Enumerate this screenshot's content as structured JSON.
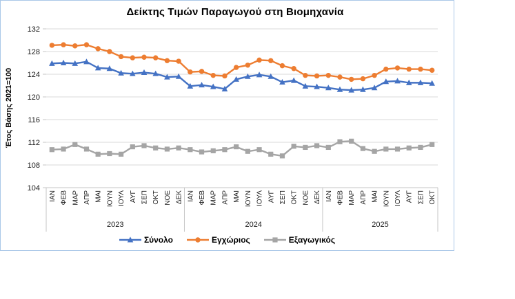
{
  "chart": {
    "border_color": "#a9c7e8",
    "background": "#ffffff",
    "gridline_color": "#d9d9d9",
    "axis_color": "#c6c6c6",
    "text_color": "#1a1a1a"
  },
  "chart_data": {
    "type": "line",
    "title": "Δείκτης Τιμών Παραγωγού στη Βιομηχανία",
    "xlabel": "",
    "ylabel": "Έτος Βάσης 2021=100",
    "ylim": [
      104,
      132
    ],
    "yticks": [
      104,
      108,
      112,
      116,
      120,
      124,
      128,
      132
    ],
    "grid": true,
    "legend_position": "bottom",
    "x_groups": [
      {
        "year": "2023",
        "months": [
          "ΙΑΝ",
          "ΦΕΒ",
          "ΜΑΡ",
          "ΑΠΡ",
          "ΜΑΙ",
          "ΙΟΥΝ",
          "ΙΟΥΛ",
          "ΑΥΓ",
          "ΣΕΠ",
          "ΟΚΤ",
          "ΝΟΕ",
          "ΔΕΚ"
        ]
      },
      {
        "year": "2024",
        "months": [
          "ΙΑΝ",
          "ΦΕΒ",
          "ΜΑΡ",
          "ΑΠΡ",
          "ΜΑΙ",
          "ΙΟΥΝ",
          "ΙΟΥΛ",
          "ΑΥΓ",
          "ΣΕΠ",
          "ΟΚΤ",
          "ΝΟΕ",
          "ΔΕΚ"
        ]
      },
      {
        "year": "2025",
        "months": [
          "ΙΑΝ",
          "ΦΕΒ",
          "ΜΑΡ",
          "ΑΠΡ",
          "ΜΑΙ",
          "ΙΟΥΝ",
          "ΙΟΥΛ",
          "ΑΥΓ",
          "ΣΕΠ",
          "ΟΚΤ"
        ]
      }
    ],
    "series": [
      {
        "key": "synolo",
        "name": "Σύνολο",
        "color": "#4472c4",
        "marker": "triangle",
        "values": [
          125.9,
          126.0,
          125.9,
          126.2,
          125.1,
          125.0,
          124.2,
          124.1,
          124.3,
          124.1,
          123.5,
          123.6,
          121.9,
          122.1,
          121.8,
          121.4,
          123.1,
          123.6,
          123.9,
          123.6,
          122.6,
          122.9,
          121.9,
          121.8,
          121.6,
          121.3,
          121.2,
          121.3,
          121.6,
          122.7,
          122.8,
          122.5,
          122.5,
          122.4
        ]
      },
      {
        "key": "egchorios",
        "name": "Εγχώριος",
        "color": "#ed7d31",
        "marker": "circle",
        "values": [
          129.1,
          129.2,
          129.0,
          129.2,
          128.5,
          128.0,
          127.1,
          126.9,
          127.0,
          126.9,
          126.4,
          126.3,
          124.4,
          124.5,
          123.8,
          123.7,
          125.2,
          125.6,
          126.5,
          126.4,
          125.5,
          125.0,
          123.8,
          123.7,
          123.8,
          123.5,
          123.1,
          123.2,
          123.8,
          124.9,
          125.1,
          124.9,
          124.9,
          124.7
        ]
      },
      {
        "key": "exagogikos",
        "name": "Εξαγωγικός",
        "color": "#a5a5a5",
        "marker": "square",
        "values": [
          110.7,
          110.8,
          111.6,
          110.8,
          109.9,
          110.0,
          109.9,
          111.2,
          111.4,
          111.0,
          110.8,
          111.0,
          110.7,
          110.3,
          110.5,
          110.7,
          111.2,
          110.4,
          110.7,
          109.9,
          109.6,
          111.3,
          111.1,
          111.4,
          111.1,
          112.1,
          112.2,
          110.9,
          110.4,
          110.8,
          110.8,
          111.0,
          111.1,
          111.6
        ]
      }
    ]
  }
}
